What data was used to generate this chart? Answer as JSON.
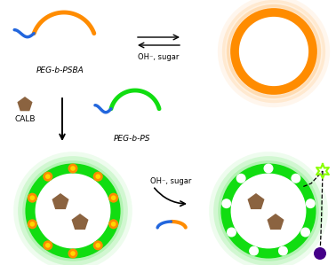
{
  "bg_color": "#ffffff",
  "orange_color": "#FF8C00",
  "blue_color": "#2266DD",
  "green_color": "#11DD11",
  "brown_color": "#8B6340",
  "yellow_color": "#FFD700",
  "purple_color": "#440088",
  "star_color": "#88FF00",
  "white_color": "#FFFFFF",
  "text_color": "#000000",
  "label_peg_psba": "PEG-b-PSBA",
  "label_peg_ps": "PEG-b-PS",
  "label_calb": "CALB",
  "label_oh_sugar1": "OH⁻, sugar",
  "label_oh_sugar2": "OH⁻, sugar",
  "figw": 3.78,
  "figh": 2.99,
  "dpi": 100
}
